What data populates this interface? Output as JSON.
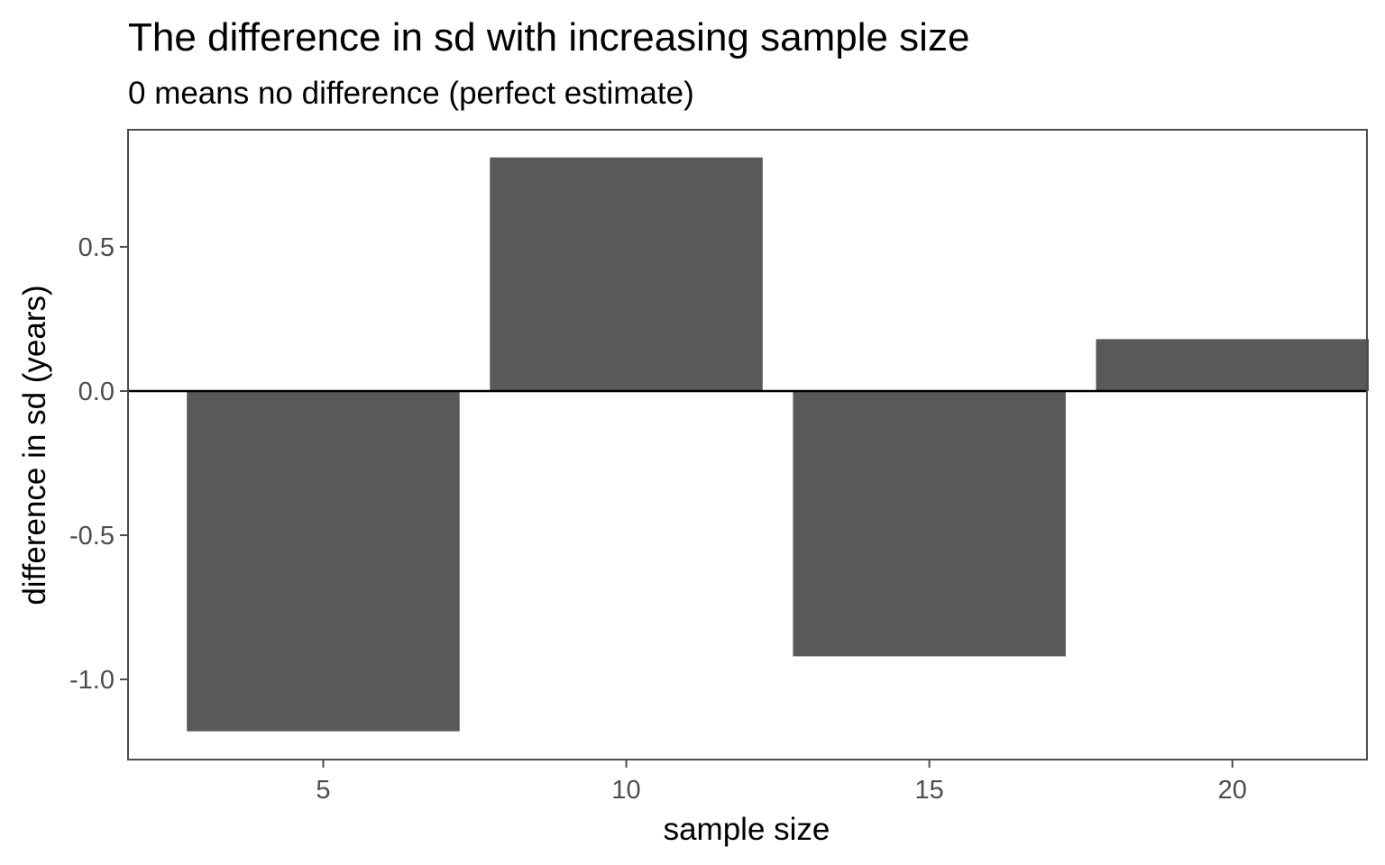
{
  "chart_data": {
    "type": "bar",
    "title": "The difference in sd with increasing sample size",
    "subtitle": "0 means no difference (perfect estimate)",
    "xlabel": "sample size",
    "ylabel": "difference in sd (years)",
    "x": [
      5,
      10,
      15,
      20
    ],
    "values": [
      -1.18,
      0.81,
      -0.92,
      0.18
    ],
    "bar_width": 4.5,
    "xlim": [
      1.78,
      22.22
    ],
    "ylim": [
      -1.278,
      0.906
    ],
    "x_ticks": [
      5,
      10,
      15,
      20
    ],
    "x_tick_labels": [
      "5",
      "10",
      "15",
      "20"
    ],
    "y_ticks": [
      -1.0,
      -0.5,
      0.0,
      0.5
    ],
    "y_tick_labels": [
      "-1.0",
      "-0.5",
      "0.0",
      "0.5"
    ],
    "hline": 0,
    "grid": false,
    "bar_color": "#595959",
    "hline_color": "#000000",
    "panel_border_color": "#4d4d4d"
  }
}
